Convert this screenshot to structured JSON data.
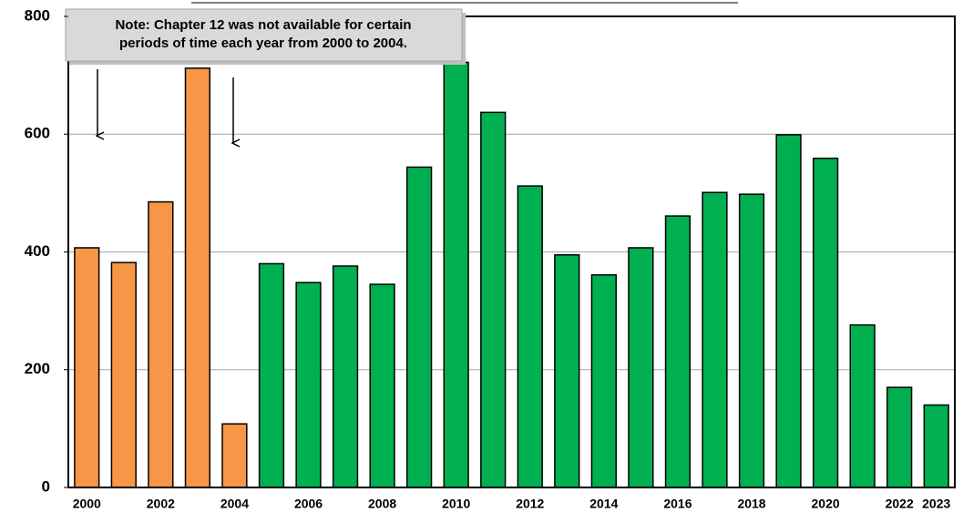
{
  "chart_data": {
    "type": "bar",
    "annotation": [
      "Note: Chapter 12 was not available for certain",
      "periods of time each year from 2000 to 2004."
    ],
    "categories": [
      "2000",
      null,
      "2002",
      null,
      "2004",
      null,
      "2006",
      null,
      "2008",
      null,
      "2010",
      null,
      "2012",
      null,
      "2014",
      null,
      "2016",
      null,
      "2018",
      null,
      "2020",
      null,
      "2022",
      "2023"
    ],
    "values": [
      407,
      382,
      485,
      712,
      108,
      380,
      348,
      376,
      345,
      544,
      722,
      637,
      512,
      395,
      361,
      407,
      461,
      501,
      498,
      599,
      559,
      276,
      170,
      140
    ],
    "colors": [
      "#f79646",
      "#f79646",
      "#f79646",
      "#f79646",
      "#f79646",
      "#00b050",
      "#00b050",
      "#00b050",
      "#00b050",
      "#00b050",
      "#00b050",
      "#00b050",
      "#00b050",
      "#00b050",
      "#00b050",
      "#00b050",
      "#00b050",
      "#00b050",
      "#00b050",
      "#00b050",
      "#00b050",
      "#00b050",
      "#00b050",
      "#00b050"
    ],
    "ylim": [
      0,
      800
    ],
    "yticks": [
      0,
      200,
      400,
      600,
      800
    ],
    "grid": true
  }
}
